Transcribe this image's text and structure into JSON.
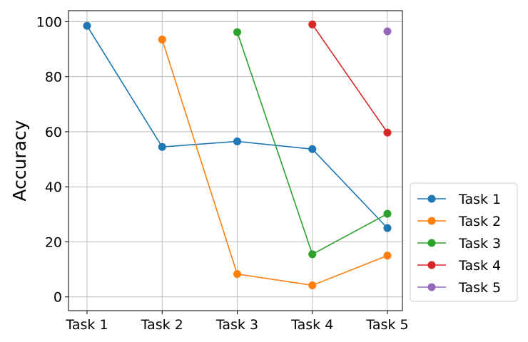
{
  "chart_data": {
    "type": "line",
    "title": "",
    "xlabel": "",
    "ylabel": "Accuracy",
    "categories": [
      "Task 1",
      "Task 2",
      "Task 3",
      "Task 4",
      "Task 5"
    ],
    "ylim": [
      -5,
      104
    ],
    "yticks": [
      0,
      20,
      40,
      60,
      80,
      100
    ],
    "grid": true,
    "legend_position": "outside-lower-right",
    "series": [
      {
        "name": "Task 1",
        "color": "#1f77b4",
        "values": [
          98.5,
          54.5,
          56.5,
          53.7,
          25.0
        ]
      },
      {
        "name": "Task 2",
        "color": "#ff7f0e",
        "values": [
          null,
          93.5,
          8.3,
          4.2,
          15.0
        ]
      },
      {
        "name": "Task 3",
        "color": "#2ca02c",
        "values": [
          null,
          null,
          96.2,
          15.5,
          30.2
        ]
      },
      {
        "name": "Task 4",
        "color": "#d62728",
        "values": [
          null,
          null,
          null,
          99.0,
          59.7
        ]
      },
      {
        "name": "Task 5",
        "color": "#9467bd",
        "values": [
          null,
          null,
          null,
          null,
          96.5
        ]
      }
    ]
  }
}
